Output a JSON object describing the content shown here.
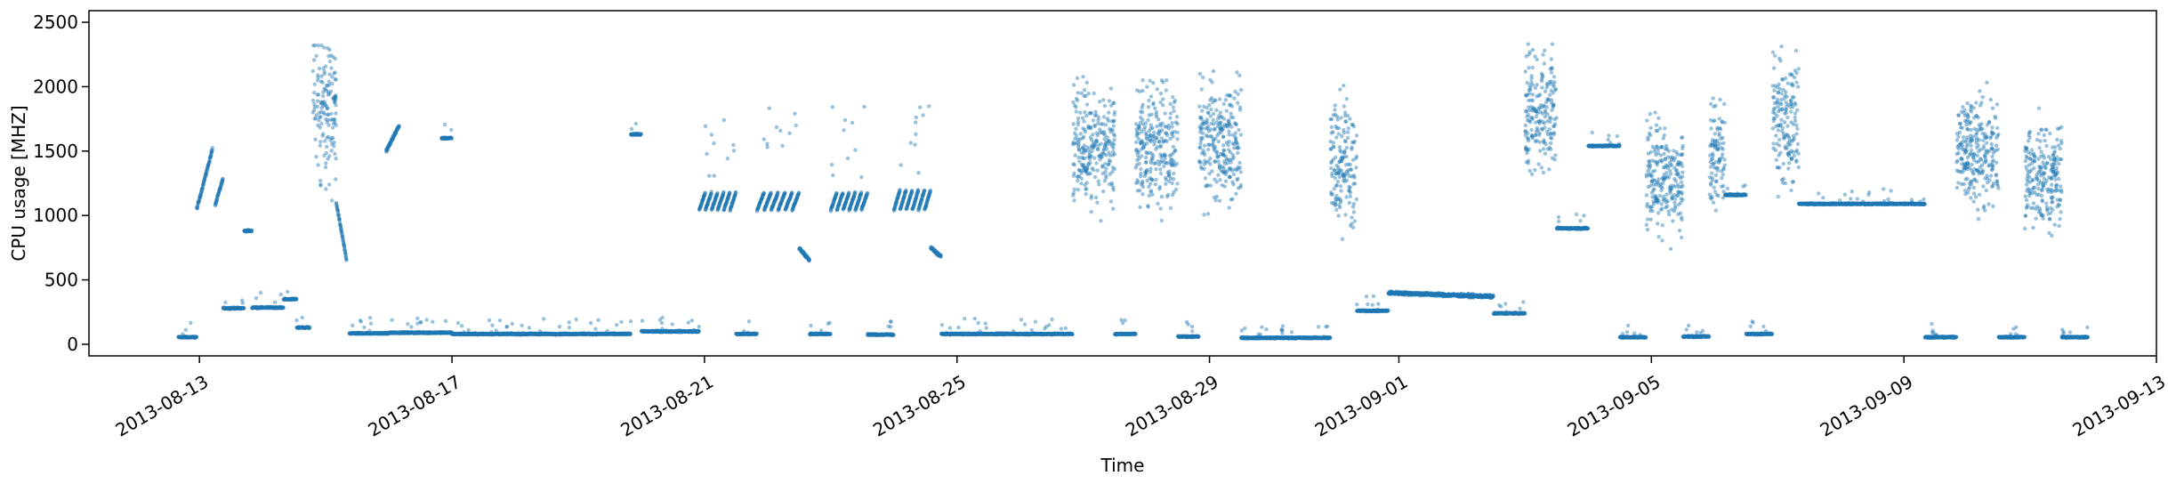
{
  "chart_data": {
    "type": "scatter",
    "title": "",
    "xlabel": "Time",
    "ylabel": "CPU usage [MHZ]",
    "ylim": [
      -90,
      2590
    ],
    "xlim": [
      "2013-08-11T06:00",
      "2013-09-13T00:00"
    ],
    "grid": false,
    "legend": "none",
    "point_color": "#1f77b4",
    "point_alpha": 0.45,
    "x_ticks": [
      "2013-08-13",
      "2013-08-17",
      "2013-08-21",
      "2013-08-25",
      "2013-08-29",
      "2013-09-01",
      "2013-09-05",
      "2013-09-09",
      "2013-09-13"
    ],
    "y_ticks": [
      0,
      500,
      1000,
      1500,
      2000,
      2500
    ],
    "segments": [
      {
        "start": "2013-08-12T16:00",
        "end": "2013-08-12T23:00",
        "kind": "flat",
        "level": 55
      },
      {
        "start": "2013-08-12T23:00",
        "end": "2013-08-13T05:00",
        "kind": "ramp",
        "from": 1050,
        "to": 1520
      },
      {
        "start": "2013-08-13T06:00",
        "end": "2013-08-13T09:00",
        "kind": "ramp",
        "from": 1080,
        "to": 1290
      },
      {
        "start": "2013-08-13T09:00",
        "end": "2013-08-13T17:00",
        "kind": "flat",
        "level": 280
      },
      {
        "start": "2013-08-13T17:00",
        "end": "2013-08-13T20:00",
        "kind": "flat",
        "level": 880
      },
      {
        "start": "2013-08-13T20:00",
        "end": "2013-08-14T08:00",
        "kind": "flat",
        "level": 285
      },
      {
        "start": "2013-08-14T08:00",
        "end": "2013-08-14T13:00",
        "kind": "flat",
        "level": 350
      },
      {
        "start": "2013-08-14T13:00",
        "end": "2013-08-14T18:00",
        "kind": "flat",
        "level": 130
      },
      {
        "start": "2013-08-14T19:00",
        "end": "2013-08-15T04:00",
        "kind": "scatter",
        "min": 500,
        "max": 2320,
        "center": 1800
      },
      {
        "start": "2013-08-15T04:00",
        "end": "2013-08-15T08:00",
        "kind": "ramp",
        "from": 1100,
        "to": 650
      },
      {
        "start": "2013-08-15T09:00",
        "end": "2013-08-16T00:00",
        "kind": "flat",
        "level": 85
      },
      {
        "start": "2013-08-15T23:00",
        "end": "2013-08-16T04:00",
        "kind": "ramp",
        "from": 1500,
        "to": 1700
      },
      {
        "start": "2013-08-16T00:00",
        "end": "2013-08-17T00:00",
        "kind": "flat",
        "level": 90
      },
      {
        "start": "2013-08-16T20:00",
        "end": "2013-08-17T00:00",
        "kind": "flat",
        "level": 1600
      },
      {
        "start": "2013-08-17T00:00",
        "end": "2013-08-19T20:00",
        "kind": "flat",
        "level": 80
      },
      {
        "start": "2013-08-19T20:00",
        "end": "2013-08-20T00:00",
        "kind": "flat",
        "level": 1630
      },
      {
        "start": "2013-08-20T00:00",
        "end": "2013-08-20T22:00",
        "kind": "flat",
        "level": 100
      },
      {
        "start": "2013-08-20T22:00",
        "end": "2013-08-21T12:00",
        "kind": "saw",
        "from": 1040,
        "to": 1180
      },
      {
        "start": "2013-08-21T12:00",
        "end": "2013-08-21T20:00",
        "kind": "flat",
        "level": 80
      },
      {
        "start": "2013-08-21T20:00",
        "end": "2013-08-22T12:00",
        "kind": "saw",
        "from": 1040,
        "to": 1180
      },
      {
        "start": "2013-08-22T12:00",
        "end": "2013-08-22T16:00",
        "kind": "ramp",
        "from": 750,
        "to": 650
      },
      {
        "start": "2013-08-22T16:00",
        "end": "2013-08-23T00:00",
        "kind": "flat",
        "level": 80
      },
      {
        "start": "2013-08-23T00:00",
        "end": "2013-08-23T14:00",
        "kind": "saw",
        "from": 1040,
        "to": 1180
      },
      {
        "start": "2013-08-23T14:00",
        "end": "2013-08-24T00:00",
        "kind": "flat",
        "level": 75
      },
      {
        "start": "2013-08-24T00:00",
        "end": "2013-08-24T14:00",
        "kind": "saw",
        "from": 1040,
        "to": 1200
      },
      {
        "start": "2013-08-24T14:00",
        "end": "2013-08-24T18:00",
        "kind": "ramp",
        "from": 750,
        "to": 680
      },
      {
        "start": "2013-08-24T18:00",
        "end": "2013-08-26T20:00",
        "kind": "flat",
        "level": 80
      },
      {
        "start": "2013-08-26T20:00",
        "end": "2013-08-27T12:00",
        "kind": "scatter",
        "min": 600,
        "max": 2080,
        "center": 1550
      },
      {
        "start": "2013-08-27T12:00",
        "end": "2013-08-27T20:00",
        "kind": "flat",
        "level": 80
      },
      {
        "start": "2013-08-27T20:00",
        "end": "2013-08-28T12:00",
        "kind": "scatter",
        "min": 550,
        "max": 2050,
        "center": 1550
      },
      {
        "start": "2013-08-28T12:00",
        "end": "2013-08-28T20:00",
        "kind": "flat",
        "level": 60
      },
      {
        "start": "2013-08-28T20:00",
        "end": "2013-08-29T12:00",
        "kind": "scatter",
        "min": 600,
        "max": 2120,
        "center": 1550
      },
      {
        "start": "2013-08-29T12:00",
        "end": "2013-08-30T22:00",
        "kind": "flat",
        "level": 50
      },
      {
        "start": "2013-08-30T22:00",
        "end": "2013-08-31T08:00",
        "kind": "scatter",
        "min": 500,
        "max": 2100,
        "center": 1400
      },
      {
        "start": "2013-08-31T08:00",
        "end": "2013-08-31T20:00",
        "kind": "flat",
        "level": 260
      },
      {
        "start": "2013-08-31T20:00",
        "end": "2013-09-02T12:00",
        "kind": "ramp",
        "from": 400,
        "to": 370
      },
      {
        "start": "2013-09-02T12:00",
        "end": "2013-09-03T00:00",
        "kind": "flat",
        "level": 240
      },
      {
        "start": "2013-09-03T00:00",
        "end": "2013-09-03T12:00",
        "kind": "scatter",
        "min": 800,
        "max": 2330,
        "center": 1800
      },
      {
        "start": "2013-09-03T12:00",
        "end": "2013-09-04T00:00",
        "kind": "flat",
        "level": 900
      },
      {
        "start": "2013-09-04T00:00",
        "end": "2013-09-04T12:00",
        "kind": "flat",
        "level": 1540
      },
      {
        "start": "2013-09-04T12:00",
        "end": "2013-09-04T22:00",
        "kind": "flat",
        "level": 55
      },
      {
        "start": "2013-09-04T22:00",
        "end": "2013-09-05T12:00",
        "kind": "scatter",
        "min": 600,
        "max": 2000,
        "center": 1300
      },
      {
        "start": "2013-09-05T12:00",
        "end": "2013-09-05T22:00",
        "kind": "flat",
        "level": 60
      },
      {
        "start": "2013-09-05T22:00",
        "end": "2013-09-06T04:00",
        "kind": "scatter",
        "min": 800,
        "max": 2080,
        "center": 1500
      },
      {
        "start": "2013-09-06T04:00",
        "end": "2013-09-06T12:00",
        "kind": "flat",
        "level": 1160
      },
      {
        "start": "2013-09-06T12:00",
        "end": "2013-09-06T22:00",
        "kind": "flat",
        "level": 80
      },
      {
        "start": "2013-09-06T22:00",
        "end": "2013-09-07T08:00",
        "kind": "scatter",
        "min": 900,
        "max": 2470,
        "center": 1700
      },
      {
        "start": "2013-09-07T08:00",
        "end": "2013-09-09T08:00",
        "kind": "flat",
        "level": 1090
      },
      {
        "start": "2013-09-09T08:00",
        "end": "2013-09-09T20:00",
        "kind": "flat",
        "level": 55
      },
      {
        "start": "2013-09-09T20:00",
        "end": "2013-09-10T12:00",
        "kind": "scatter",
        "min": 700,
        "max": 2060,
        "center": 1500
      },
      {
        "start": "2013-09-10T12:00",
        "end": "2013-09-10T22:00",
        "kind": "flat",
        "level": 55
      },
      {
        "start": "2013-09-10T22:00",
        "end": "2013-09-11T12:00",
        "kind": "scatter",
        "min": 600,
        "max": 1920,
        "center": 1300
      },
      {
        "start": "2013-09-11T12:00",
        "end": "2013-09-11T22:00",
        "kind": "flat",
        "level": 55
      }
    ]
  }
}
